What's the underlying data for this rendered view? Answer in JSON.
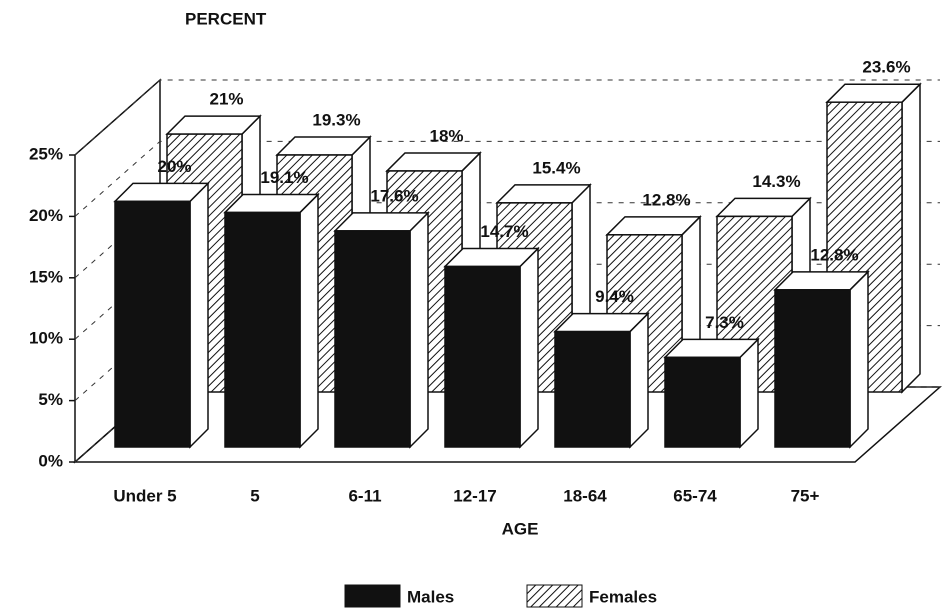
{
  "chart_data": {
    "type": "bar3d",
    "title": "PERCENT",
    "x_label": "AGE",
    "categories": [
      "Under 5",
      "5",
      "6-11",
      "12-17",
      "18-64",
      "65-74",
      "75+"
    ],
    "series": [
      {
        "name": "Males",
        "color": "#111111",
        "pattern": "solid",
        "values": [
          20,
          19.1,
          17.6,
          14.7,
          9.4,
          7.3,
          12.8
        ],
        "value_labels": [
          "20%",
          "19.1%",
          "17.6%",
          "14.7%",
          "9.4%",
          "7.3%",
          "12.8%"
        ]
      },
      {
        "name": "Females",
        "color": "#111111",
        "pattern": "hatch",
        "values": [
          21,
          19.3,
          18,
          15.4,
          12.8,
          14.3,
          23.6
        ],
        "value_labels": [
          "21%",
          "19.3%",
          "18%",
          "15.4%",
          "12.8%",
          "14.3%",
          "23.6%"
        ]
      }
    ],
    "ylim": [
      0,
      25
    ],
    "yticks": [
      {
        "value": 0,
        "label": "0%"
      },
      {
        "value": 5,
        "label": "5%"
      },
      {
        "value": 10,
        "label": "10%"
      },
      {
        "value": 15,
        "label": "15%"
      },
      {
        "value": 20,
        "label": "20%"
      },
      {
        "value": 25,
        "label": "25%"
      }
    ],
    "grid": true
  }
}
